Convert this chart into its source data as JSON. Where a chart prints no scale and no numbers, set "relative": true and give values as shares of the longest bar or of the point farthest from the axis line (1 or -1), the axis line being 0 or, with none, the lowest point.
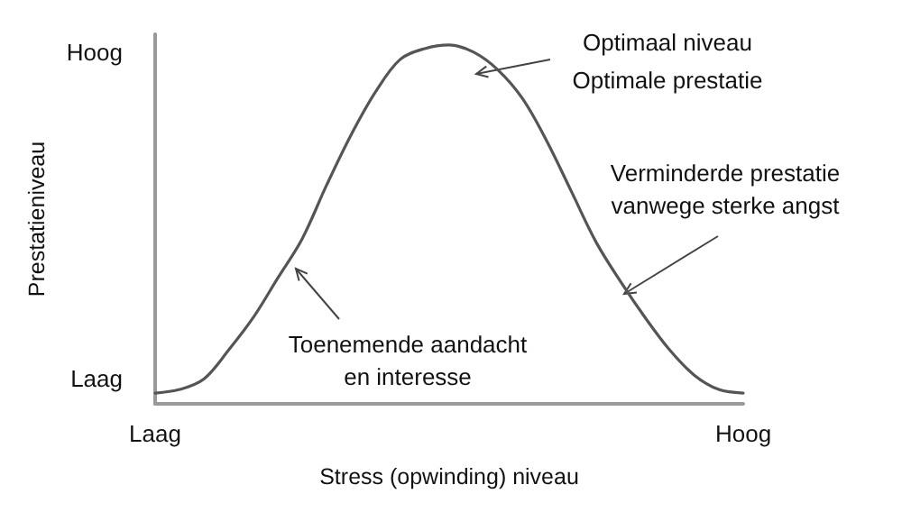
{
  "chart_data": {
    "type": "line",
    "relative": true,
    "xlabel": "Stress (opwinding) niveau",
    "ylabel": "Prestatieniveau",
    "categories": [
      "Laag",
      null,
      null,
      null,
      null,
      null,
      null,
      null,
      null,
      null,
      null,
      null,
      null,
      null,
      null,
      null,
      null,
      null,
      null,
      null,
      null,
      null,
      null,
      null,
      "Hoog"
    ],
    "series": [
      {
        "color": "#555555",
        "values": [
          0.03,
          0.04,
          0.07,
          0.15,
          0.24,
          0.35,
          0.46,
          0.61,
          0.75,
          0.87,
          0.96,
          0.99,
          1,
          0.98,
          0.93,
          0.85,
          0.73,
          0.59,
          0.45,
          0.34,
          0.24,
          0.15,
          0.08,
          0.04,
          0.03
        ]
      }
    ],
    "annotations": [
      "Optimaal niveau\nOptimale prestatie",
      "Verminderde prestatie\nvanwege sterke angst",
      "Toenemende aandacht\nen interesse",
      "Hoog",
      "Laag"
    ],
    "grid": false,
    "marker": "none",
    "line_style": "solid"
  }
}
